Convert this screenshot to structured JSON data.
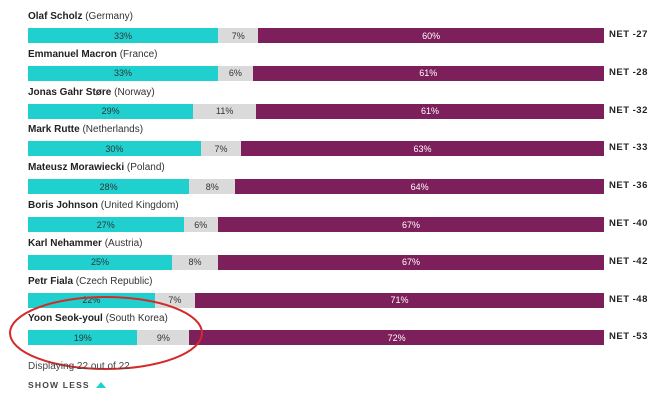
{
  "chart_data": {
    "type": "bar",
    "stacked": true,
    "orientation": "horizontal",
    "categories": [
      "Olaf Scholz (Germany)",
      "Emmanuel Macron (France)",
      "Jonas Gahr Støre (Norway)",
      "Mark Rutte (Netherlands)",
      "Mateusz Morawiecki (Poland)",
      "Boris Johnson (United Kingdom)",
      "Karl Nehammer (Austria)",
      "Petr Fiala (Czech Republic)",
      "Yoon Seok-youl (South Korea)"
    ],
    "leaders": [
      {
        "name": "Olaf Scholz",
        "country": "(Germany)",
        "net": "NET -27"
      },
      {
        "name": "Emmanuel Macron",
        "country": "(France)",
        "net": "NET -28"
      },
      {
        "name": "Jonas Gahr Støre",
        "country": "(Norway)",
        "net": "NET -32"
      },
      {
        "name": "Mark Rutte",
        "country": "(Netherlands)",
        "net": "NET -33"
      },
      {
        "name": "Mateusz Morawiecki",
        "country": "(Poland)",
        "net": "NET -36"
      },
      {
        "name": "Boris Johnson",
        "country": "(United Kingdom)",
        "net": "NET -40"
      },
      {
        "name": "Karl Nehammer",
        "country": "(Austria)",
        "net": "NET -42"
      },
      {
        "name": "Petr Fiala",
        "country": "(Czech Republic)",
        "net": "NET -48"
      },
      {
        "name": "Yoon Seok-youl",
        "country": "(South Korea)",
        "net": "NET -53"
      }
    ],
    "series": [
      {
        "values": [
          33,
          33,
          29,
          30,
          28,
          27,
          25,
          22,
          19
        ],
        "color": "#1fd0cf"
      },
      {
        "values": [
          7,
          6,
          11,
          7,
          8,
          6,
          8,
          7,
          9
        ],
        "color": "#dadada"
      },
      {
        "values": [
          60,
          61,
          61,
          63,
          64,
          67,
          67,
          71,
          72
        ],
        "color": "#7d1f5b"
      }
    ],
    "xlim": [
      0,
      100
    ],
    "grid": false
  },
  "footer": {
    "displaying": "Displaying 22 out of 22",
    "show_less": "SHOW LESS",
    "toggle_icon": "triangle-up-icon"
  },
  "annotation": {
    "color": "#d42a2a",
    "target": "Yoon Seok-youl (South Korea)"
  }
}
